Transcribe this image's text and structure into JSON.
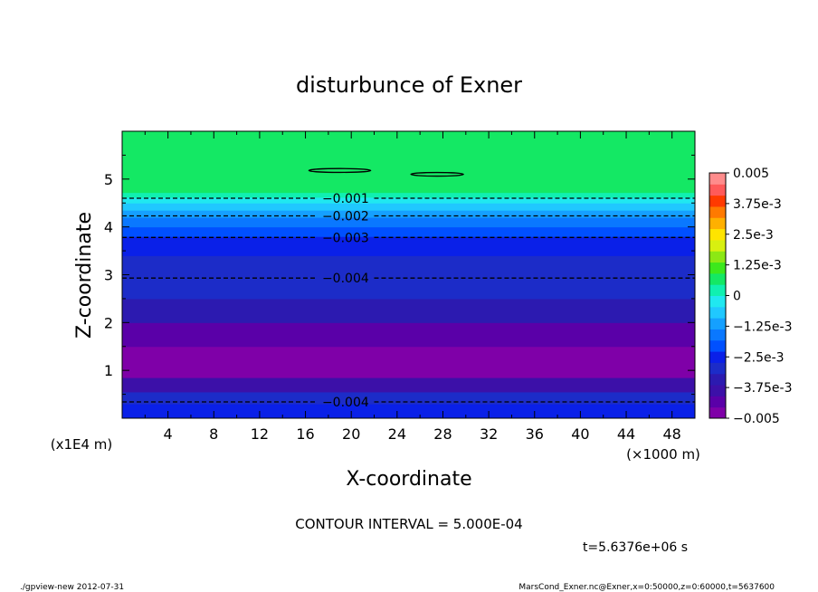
{
  "chart_data": {
    "type": "contour",
    "title": "disturbunce of Exner",
    "xlabel": "X-coordinate",
    "ylabel": "Z-coordinate",
    "x_unit": "(×1000 m)",
    "y_unit": "(x1E4 m)",
    "xlim": [
      0,
      50
    ],
    "ylim": [
      0,
      6
    ],
    "x_ticks": [
      "4",
      "8",
      "12",
      "16",
      "20",
      "24",
      "28",
      "32",
      "36",
      "40",
      "44",
      "48"
    ],
    "y_ticks": [
      "1",
      "2",
      "3",
      "4",
      "5"
    ],
    "contour_interval_text": "CONTOUR INTERVAL = 5.000E-04",
    "colorbar": {
      "min": -0.005,
      "max": 0.005,
      "tick_labels": [
        "0.005",
        "3.75e-3",
        "2.5e-3",
        "1.25e-3",
        "0",
        "-1.25e-3",
        "-2.5e-3",
        "-3.75e-3",
        "-0.005"
      ],
      "colors": [
        "#7f00a8",
        "#5a00a8",
        "#3c10a8",
        "#2c1ab0",
        "#1c2cc8",
        "#0a20e8",
        "#0050ff",
        "#0a78ff",
        "#15a0ff",
        "#20c8ff",
        "#20e8f0",
        "#10f0b0",
        "#14e864",
        "#3ce81c",
        "#8ce814",
        "#d8f010",
        "#ffe400",
        "#ffb000",
        "#ff7a00",
        "#ff3a00",
        "#ff5a5a",
        "#ff8c8c"
      ]
    },
    "layers": [
      {
        "z0": 0.0,
        "z1": 0.3,
        "value": -0.004,
        "color": "#0a20e8"
      },
      {
        "z0": 0.3,
        "z1": 0.55,
        "value": -0.00425,
        "color": "#1c2cc8"
      },
      {
        "z0": 0.55,
        "z1": 0.85,
        "value": -0.0045,
        "color": "#3c10a8"
      },
      {
        "z0": 0.85,
        "z1": 1.5,
        "value": -0.00475,
        "color": "#7f00a8"
      },
      {
        "z0": 1.5,
        "z1": 2.0,
        "value": -0.0046,
        "color": "#5a00a8"
      },
      {
        "z0": 2.0,
        "z1": 2.5,
        "value": -0.0044,
        "color": "#2c1ab0"
      },
      {
        "z0": 2.5,
        "z1": 3.4,
        "value": -0.0041,
        "color": "#1c2cc8"
      },
      {
        "z0": 3.4,
        "z1": 3.8,
        "value": -0.00375,
        "color": "#0a20e8"
      },
      {
        "z0": 3.8,
        "z1": 4.0,
        "value": -0.00325,
        "color": "#0050ff"
      },
      {
        "z0": 4.0,
        "z1": 4.2,
        "value": -0.00275,
        "color": "#0a78ff"
      },
      {
        "z0": 4.2,
        "z1": 4.35,
        "value": -0.00225,
        "color": "#15a0ff"
      },
      {
        "z0": 4.35,
        "z1": 4.5,
        "value": -0.00175,
        "color": "#20c8ff"
      },
      {
        "z0": 4.5,
        "z1": 4.62,
        "value": -0.00125,
        "color": "#20e8f0"
      },
      {
        "z0": 4.62,
        "z1": 4.72,
        "value": -0.00075,
        "color": "#10f0b0"
      },
      {
        "z0": 4.72,
        "z1": 6.0,
        "value": 0.0,
        "color": "#14e864"
      }
    ],
    "contour_lines": [
      {
        "level": "-0.001",
        "z": 4.6,
        "label_x": 19.5
      },
      {
        "level": "-0.002",
        "z": 4.23,
        "label_x": 19.5
      },
      {
        "level": "-0.003",
        "z": 3.78,
        "label_x": 19.5
      },
      {
        "level": "-0.004",
        "z": 2.93,
        "label_x": 19.5
      },
      {
        "level": "-0.004",
        "z": 0.34,
        "label_x": 19.5
      }
    ],
    "closed_contours": [
      {
        "cx": 19.0,
        "cz": 5.18,
        "rx": 2.7,
        "rz": 0.04
      },
      {
        "cx": 27.5,
        "cz": 5.1,
        "rx": 2.3,
        "rz": 0.035
      }
    ]
  },
  "footer": {
    "time_text": "t=5.6376e+06 s",
    "program_text": "./gpview-new   2012-07-31",
    "source_text": "MarsCond_Exner.nc@Exner,x=0:50000,z=0:60000,t=5637600"
  }
}
